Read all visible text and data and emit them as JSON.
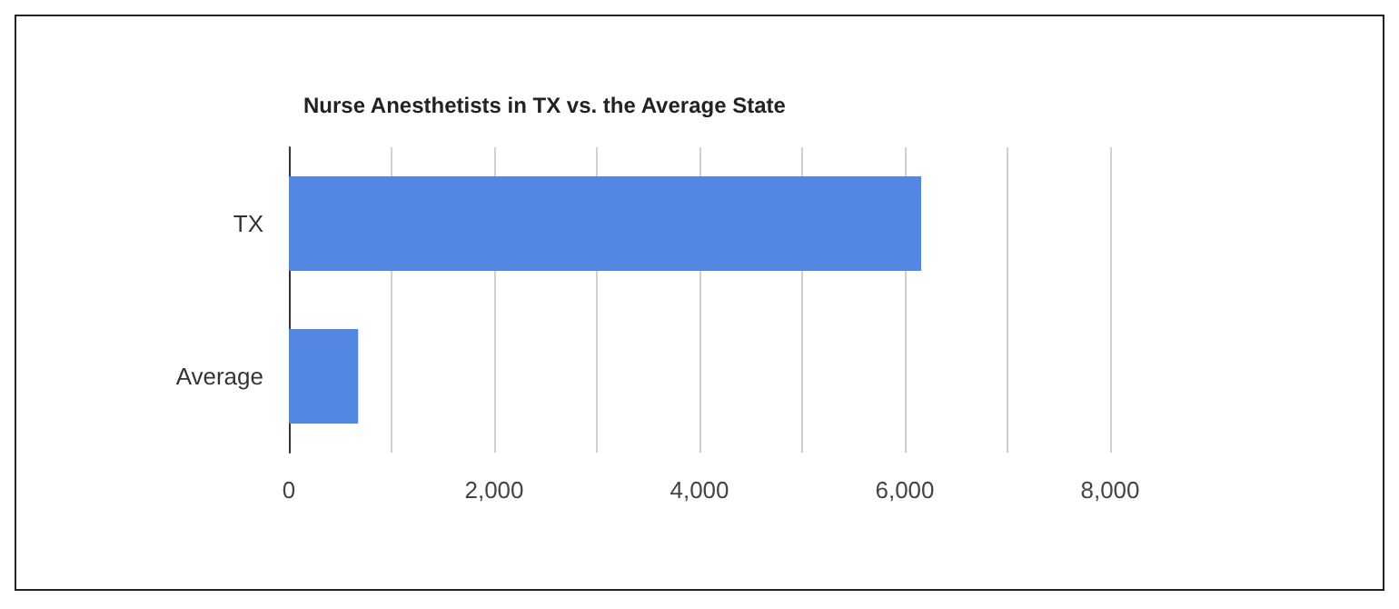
{
  "chart_data": {
    "type": "bar",
    "orientation": "horizontal",
    "title": "Nurse Anesthetists in TX vs. the Average State",
    "categories": [
      "TX",
      "Average"
    ],
    "values": [
      6160,
      675
    ],
    "color": "#5487e3",
    "xlim": [
      0,
      8000
    ],
    "xticks": [
      0,
      {
        "value": 1000,
        "label": null
      },
      {
        "value": 2000,
        "label": "2,000"
      },
      {
        "value": 3000,
        "label": null
      },
      {
        "value": 4000,
        "label": "4,000"
      },
      {
        "value": 5000,
        "label": null
      },
      {
        "value": 6000,
        "label": "6,000"
      },
      {
        "value": 7000,
        "label": null
      },
      {
        "value": 8000,
        "label": "8,000"
      }
    ],
    "grid": "x"
  }
}
